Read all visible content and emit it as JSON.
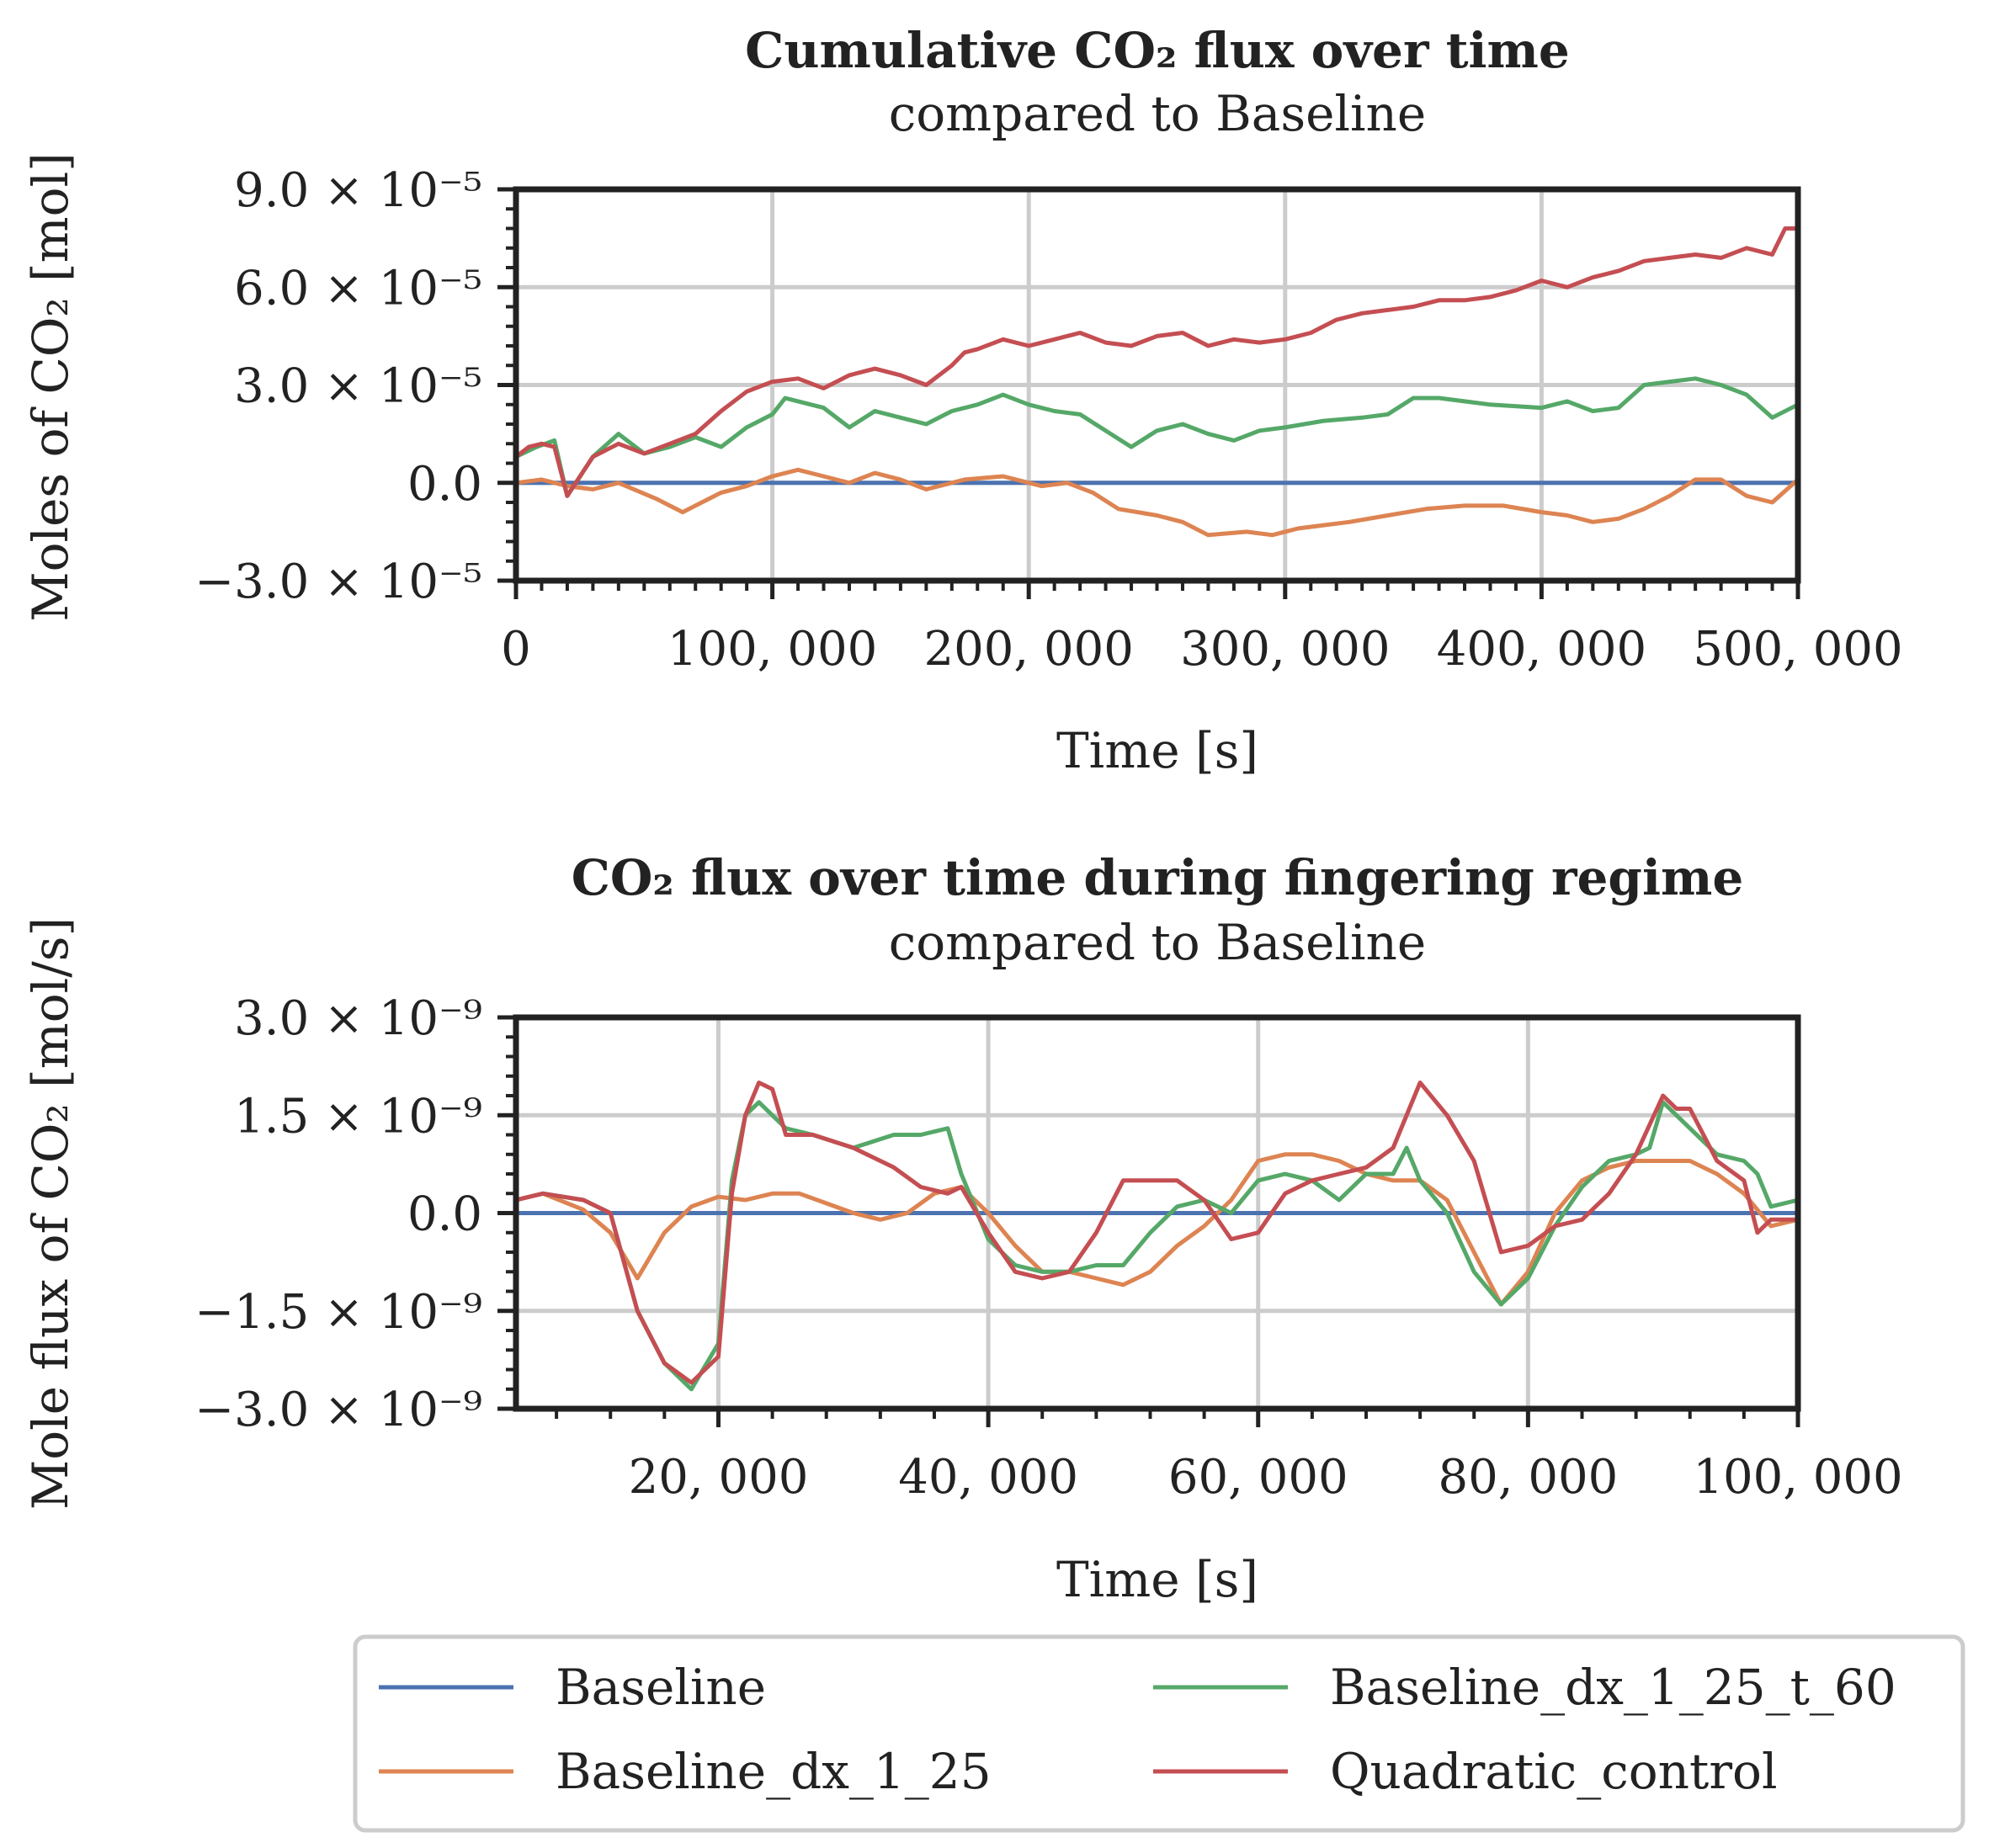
{
  "colors": {
    "Baseline": "#4c72b0",
    "Baseline_dx_1_25": "#dd8452",
    "Baseline_dx_1_25_t_60": "#55a868",
    "Quadratic_control": "#c44e52"
  },
  "legend": {
    "entries": [
      "Baseline",
      "Baseline_dx_1_25",
      "Baseline_dx_1_25_t_60",
      "Quadratic_control"
    ],
    "labels": [
      "Baseline",
      "Baseline_dx_1_25",
      "Baseline_dx_1_25_t_60",
      "Quadratic_control"
    ]
  },
  "chart_data": [
    {
      "type": "line",
      "title": "Cumulative CO₂ flux over time",
      "subtitle": "compared to Baseline",
      "xlabel": "Time [s]",
      "ylabel": "Moles of CO₂ [mol]",
      "xlim": [
        0,
        500000
      ],
      "ylim": [
        -3e-05,
        9e-05
      ],
      "xticks": [
        0,
        100000,
        200000,
        300000,
        400000,
        500000
      ],
      "xtick_labels": [
        "0",
        "100, 000",
        "200, 000",
        "300, 000",
        "400, 000",
        "500, 000"
      ],
      "yticks": [
        -3e-05,
        0,
        3e-05,
        6e-05,
        9e-05
      ],
      "ytick_labels": [
        "−3.0 × 10⁻⁵",
        "0.0",
        "3.0 × 10⁻⁵",
        "6.0 × 10⁻⁵",
        "9.0 × 10⁻⁵"
      ],
      "grid": true,
      "series": [
        {
          "name": "Baseline",
          "x": [
            0,
            500000
          ],
          "y": [
            0,
            0
          ]
        },
        {
          "name": "Baseline_dx_1_25",
          "x": [
            0,
            10000,
            20000,
            30000,
            40000,
            55000,
            65000,
            80000,
            90000,
            100000,
            110000,
            120000,
            130000,
            140000,
            150000,
            160000,
            175000,
            190000,
            205000,
            215000,
            225000,
            235000,
            250000,
            260000,
            270000,
            285000,
            295000,
            305000,
            315000,
            325000,
            340000,
            355000,
            370000,
            385000,
            400000,
            410000,
            420000,
            430000,
            440000,
            450000,
            460000,
            470000,
            480000,
            490000,
            500000
          ],
          "y": [
            0,
            1e-06,
            -1e-06,
            -2e-06,
            0,
            -5e-06,
            -9e-06,
            -3e-06,
            -1e-06,
            2e-06,
            4e-06,
            2e-06,
            0,
            3e-06,
            1e-06,
            -2e-06,
            1e-06,
            2e-06,
            -1e-06,
            0,
            -3e-06,
            -8e-06,
            -1e-05,
            -1.2e-05,
            -1.6e-05,
            -1.5e-05,
            -1.6e-05,
            -1.4e-05,
            -1.3e-05,
            -1.2e-05,
            -1e-05,
            -8e-06,
            -7e-06,
            -7e-06,
            -9e-06,
            -1e-05,
            -1.2e-05,
            -1.1e-05,
            -8e-06,
            -4e-06,
            1e-06,
            1e-06,
            -4e-06,
            -6e-06,
            1e-06
          ]
        },
        {
          "name": "Baseline_dx_1_25_t_60",
          "x": [
            0,
            8000,
            15000,
            20000,
            30000,
            40000,
            50000,
            60000,
            70000,
            80000,
            90000,
            100000,
            105000,
            110000,
            120000,
            130000,
            140000,
            150000,
            160000,
            170000,
            180000,
            190000,
            200000,
            210000,
            220000,
            230000,
            240000,
            250000,
            260000,
            270000,
            280000,
            290000,
            300000,
            315000,
            330000,
            340000,
            350000,
            360000,
            370000,
            380000,
            400000,
            410000,
            420000,
            430000,
            440000,
            450000,
            460000,
            470000,
            480000,
            490000,
            500000
          ],
          "y": [
            8e-06,
            1.1e-05,
            1.3e-05,
            -4e-06,
            8e-06,
            1.5e-05,
            9e-06,
            1.1e-05,
            1.4e-05,
            1.1e-05,
            1.7e-05,
            2.1e-05,
            2.6e-05,
            2.5e-05,
            2.3e-05,
            1.7e-05,
            2.2e-05,
            2e-05,
            1.8e-05,
            2.2e-05,
            2.4e-05,
            2.7e-05,
            2.4e-05,
            2.2e-05,
            2.1e-05,
            1.6e-05,
            1.1e-05,
            1.6e-05,
            1.8e-05,
            1.5e-05,
            1.3e-05,
            1.6e-05,
            1.7e-05,
            1.9e-05,
            2e-05,
            2.1e-05,
            2.6e-05,
            2.6e-05,
            2.5e-05,
            2.4e-05,
            2.3e-05,
            2.5e-05,
            2.2e-05,
            2.3e-05,
            3e-05,
            3.1e-05,
            3.2e-05,
            3e-05,
            2.7e-05,
            2e-05,
            2.4e-05
          ]
        },
        {
          "name": "Quadratic_control",
          "x": [
            0,
            5000,
            10000,
            15000,
            20000,
            30000,
            40000,
            50000,
            60000,
            70000,
            80000,
            90000,
            100000,
            110000,
            120000,
            130000,
            140000,
            150000,
            160000,
            170000,
            175000,
            180000,
            190000,
            200000,
            210000,
            220000,
            230000,
            240000,
            250000,
            260000,
            270000,
            280000,
            290000,
            300000,
            310000,
            320000,
            330000,
            340000,
            350000,
            360000,
            370000,
            380000,
            390000,
            400000,
            410000,
            420000,
            430000,
            440000,
            450000,
            460000,
            470000,
            480000,
            490000,
            495000,
            500000
          ],
          "y": [
            8e-06,
            1.1e-05,
            1.2e-05,
            1.1e-05,
            -4e-06,
            8e-06,
            1.2e-05,
            9e-06,
            1.2e-05,
            1.5e-05,
            2.2e-05,
            2.8e-05,
            3.1e-05,
            3.2e-05,
            2.9e-05,
            3.3e-05,
            3.5e-05,
            3.3e-05,
            3e-05,
            3.6e-05,
            4e-05,
            4.1e-05,
            4.4e-05,
            4.2e-05,
            4.4e-05,
            4.6e-05,
            4.3e-05,
            4.2e-05,
            4.5e-05,
            4.6e-05,
            4.2e-05,
            4.4e-05,
            4.3e-05,
            4.4e-05,
            4.6e-05,
            5e-05,
            5.2e-05,
            5.3e-05,
            5.4e-05,
            5.6e-05,
            5.6e-05,
            5.7e-05,
            5.9e-05,
            6.2e-05,
            6e-05,
            6.3e-05,
            6.5e-05,
            6.8e-05,
            6.9e-05,
            7e-05,
            6.9e-05,
            7.2e-05,
            7e-05,
            7.8e-05,
            7.8e-05
          ]
        }
      ]
    },
    {
      "type": "line",
      "title": "CO₂ flux over time during fingering regime",
      "subtitle": "compared to Baseline",
      "xlabel": "Time [s]",
      "ylabel": "Mole flux of CO₂ [mol/s]",
      "xlim": [
        5000,
        100000
      ],
      "ylim": [
        -3e-09,
        3e-09
      ],
      "xticks": [
        20000,
        40000,
        60000,
        80000,
        100000
      ],
      "xtick_labels": [
        "20, 000",
        "40, 000",
        "60, 000",
        "80, 000",
        "100, 000"
      ],
      "yticks": [
        -3e-09,
        -1.5e-09,
        0,
        1.5e-09,
        3e-09
      ],
      "ytick_labels": [
        "−3.0 × 10⁻⁹",
        "−1.5 × 10⁻⁹",
        "0.0",
        "1.5 × 10⁻⁹",
        "3.0 × 10⁻⁹"
      ],
      "grid": true,
      "series": [
        {
          "name": "Baseline",
          "x": [
            5000,
            100000
          ],
          "y": [
            0,
            0
          ]
        },
        {
          "name": "Baseline_dx_1_25",
          "x": [
            5000,
            7000,
            10000,
            12000,
            14000,
            16000,
            18000,
            20000,
            22000,
            24000,
            26000,
            28000,
            30000,
            32000,
            34000,
            36000,
            38000,
            40000,
            42000,
            44000,
            46000,
            48000,
            50000,
            52000,
            54000,
            56000,
            58000,
            60000,
            62000,
            64000,
            66000,
            68000,
            70000,
            72000,
            74000,
            76000,
            78000,
            80000,
            82000,
            84000,
            86000,
            88000,
            90000,
            92000,
            94000,
            96000,
            98000,
            100000
          ],
          "y": [
            2e-10,
            3e-10,
            5e-11,
            -3e-10,
            -1e-09,
            -3e-10,
            1e-10,
            2.5e-10,
            2e-10,
            3e-10,
            3e-10,
            1.5e-10,
            0.0,
            -1e-10,
            0.0,
            3e-10,
            4e-10,
            0.0,
            -5e-10,
            -9e-10,
            -9e-10,
            -1e-09,
            -1.1e-09,
            -9e-10,
            -5e-10,
            -2e-10,
            2e-10,
            8e-10,
            9e-10,
            9e-10,
            8e-10,
            6e-10,
            5e-10,
            5e-10,
            2e-10,
            -6e-10,
            -1.4e-09,
            -9e-10,
            0.0,
            5e-10,
            7e-10,
            8e-10,
            8e-10,
            8e-10,
            6e-10,
            3e-10,
            -2e-10,
            -1e-10
          ]
        },
        {
          "name": "Baseline_dx_1_25_t_60",
          "x": [
            5000,
            7000,
            10000,
            12000,
            14000,
            16000,
            18000,
            20000,
            21000,
            22000,
            23000,
            25000,
            27000,
            30000,
            33000,
            35000,
            37000,
            38000,
            40000,
            42000,
            44000,
            46000,
            48000,
            50000,
            52000,
            54000,
            56000,
            58000,
            60000,
            62000,
            64000,
            66000,
            68000,
            70000,
            71000,
            72000,
            74000,
            76000,
            78000,
            80000,
            82000,
            84000,
            86000,
            88000,
            89000,
            90000,
            92000,
            94000,
            96000,
            97000,
            98000,
            100000
          ],
          "y": [
            2e-10,
            3e-10,
            2e-10,
            0.0,
            -1.5e-09,
            -2.3e-09,
            -2.7e-09,
            -2e-09,
            5e-10,
            1.5e-09,
            1.7e-09,
            1.3e-09,
            1.2e-09,
            1e-09,
            1.2e-09,
            1.2e-09,
            1.3e-09,
            6e-10,
            -4e-10,
            -8e-10,
            -9e-10,
            -9e-10,
            -8e-10,
            -8e-10,
            -3e-10,
            1e-10,
            2e-10,
            0.0,
            5e-10,
            6e-10,
            5e-10,
            2e-10,
            6e-10,
            6e-10,
            1e-09,
            5e-10,
            0.0,
            -9e-10,
            -1.4e-09,
            -1e-09,
            -2e-10,
            4e-10,
            8e-10,
            9e-10,
            1e-09,
            1.7e-09,
            1.3e-09,
            9e-10,
            8e-10,
            6e-10,
            1e-10,
            2e-10
          ]
        },
        {
          "name": "Quadratic_control",
          "x": [
            5000,
            7000,
            10000,
            12000,
            14000,
            16000,
            18000,
            20000,
            21000,
            22000,
            23000,
            24000,
            25000,
            27000,
            30000,
            33000,
            35000,
            37000,
            38000,
            40000,
            42000,
            44000,
            46000,
            48000,
            50000,
            52000,
            54000,
            56000,
            58000,
            60000,
            62000,
            64000,
            66000,
            68000,
            70000,
            72000,
            74000,
            76000,
            78000,
            80000,
            82000,
            84000,
            86000,
            88000,
            90000,
            91000,
            92000,
            94000,
            96000,
            97000,
            98000,
            100000
          ],
          "y": [
            2e-10,
            3e-10,
            2e-10,
            0.0,
            -1.5e-09,
            -2.3e-09,
            -2.6e-09,
            -2.2e-09,
            3e-10,
            1.5e-09,
            2e-09,
            1.9e-09,
            1.2e-09,
            1.2e-09,
            1e-09,
            7e-10,
            4e-10,
            3e-10,
            4e-10,
            -3e-10,
            -9e-10,
            -1e-09,
            -9e-10,
            -3e-10,
            5e-10,
            5e-10,
            5e-10,
            2e-10,
            -4e-10,
            -3e-10,
            3e-10,
            5e-10,
            6e-10,
            7e-10,
            1e-09,
            2e-09,
            1.5e-09,
            8e-10,
            -6e-10,
            -5e-10,
            -2e-10,
            -1e-10,
            3e-10,
            9e-10,
            1.8e-09,
            1.6e-09,
            1.6e-09,
            8e-10,
            5e-10,
            -3e-10,
            -1e-10,
            -1e-10
          ]
        }
      ]
    }
  ]
}
